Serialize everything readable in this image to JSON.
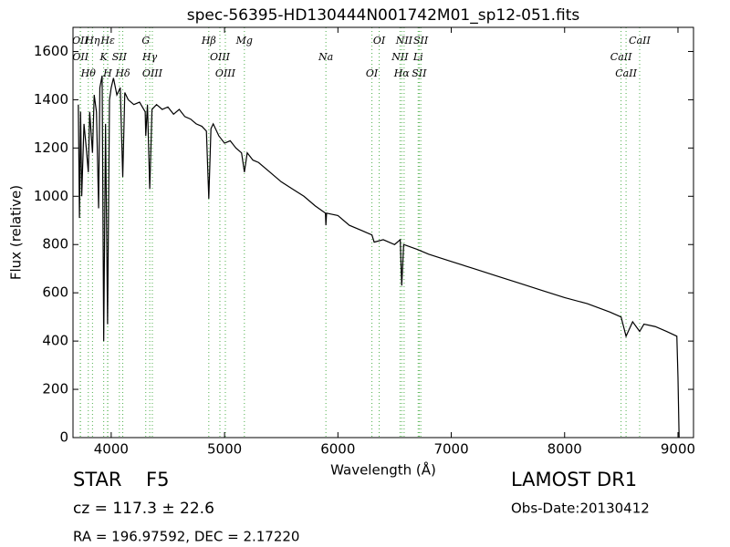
{
  "chart_data": {
    "type": "line",
    "title": "spec-56395-HD130444N001742M01_sp12-051.fits",
    "xlabel": "Wavelength (Å)",
    "ylabel": "Flux (relative)",
    "color": "#000000",
    "x": [
      3710,
      3720,
      3730,
      3740,
      3760,
      3780,
      3798,
      3810,
      3835,
      3850,
      3870,
      3889,
      3900,
      3920,
      3934,
      3950,
      3968,
      3985,
      4000,
      4020,
      4050,
      4080,
      4102,
      4120,
      4150,
      4200,
      4250,
      4300,
      4305,
      4320,
      4340,
      4360,
      4400,
      4450,
      4500,
      4550,
      4600,
      4650,
      4700,
      4750,
      4800,
      4840,
      4861,
      4880,
      4900,
      4950,
      5000,
      5050,
      5100,
      5150,
      5175,
      5200,
      5250,
      5300,
      5400,
      5500,
      5600,
      5700,
      5800,
      5890,
      5894,
      5900,
      6000,
      6100,
      6200,
      6300,
      6320,
      6400,
      6500,
      6550,
      6563,
      6580,
      6700,
      6800,
      7000,
      7200,
      7400,
      7600,
      7800,
      8000,
      8200,
      8400,
      8498,
      8542,
      8600,
      8662,
      8700,
      8800,
      8900,
      8990,
      9000,
      9010
    ],
    "values": [
      1380,
      910,
      1350,
      1000,
      1300,
      1200,
      1100,
      1350,
      1180,
      1420,
      1350,
      950,
      1450,
      1500,
      400,
      1300,
      470,
      1400,
      1450,
      1490,
      1420,
      1450,
      1080,
      1430,
      1400,
      1380,
      1390,
      1350,
      1250,
      1380,
      1030,
      1360,
      1380,
      1360,
      1370,
      1340,
      1360,
      1330,
      1320,
      1300,
      1290,
      1270,
      990,
      1280,
      1300,
      1250,
      1220,
      1230,
      1200,
      1180,
      1100,
      1180,
      1150,
      1140,
      1100,
      1060,
      1030,
      1000,
      960,
      930,
      880,
      930,
      920,
      880,
      860,
      840,
      810,
      820,
      800,
      820,
      630,
      800,
      780,
      760,
      730,
      700,
      670,
      640,
      610,
      580,
      555,
      520,
      500,
      420,
      480,
      440,
      470,
      460,
      440,
      420,
      250,
      0
    ],
    "xlim": [
      3663,
      9137
    ],
    "ylim": [
      0,
      1700
    ],
    "xticks": [
      4000,
      5000,
      6000,
      7000,
      8000,
      9000
    ],
    "yticks": [
      0,
      200,
      400,
      600,
      800,
      1000,
      1200,
      1400,
      1600
    ],
    "spectral_line_color": "#4daf4a",
    "spectral_lines": [
      {
        "label": "OII",
        "x": 3727
      },
      {
        "label": "OII",
        "x": 3729
      },
      {
        "label": "Hθ",
        "x": 3798
      },
      {
        "label": "Hη",
        "x": 3835
      },
      {
        "label": "K",
        "x": 3934
      },
      {
        "label": "H",
        "x": 3968
      },
      {
        "label": "Hε",
        "x": 3970
      },
      {
        "label": "SII",
        "x": 4072
      },
      {
        "label": "Hδ",
        "x": 4102
      },
      {
        "label": "G",
        "x": 4305
      },
      {
        "label": "Hγ",
        "x": 4340
      },
      {
        "label": "OIII",
        "x": 4363
      },
      {
        "label": "Hβ",
        "x": 4861
      },
      {
        "label": "OIII",
        "x": 4959
      },
      {
        "label": "OIII",
        "x": 5007
      },
      {
        "label": "Mg",
        "x": 5175
      },
      {
        "label": "Na",
        "x": 5894
      },
      {
        "label": "OI",
        "x": 6300
      },
      {
        "label": "OI",
        "x": 6364
      },
      {
        "label": "NII",
        "x": 6548
      },
      {
        "label": "Hα",
        "x": 6563
      },
      {
        "label": "NII",
        "x": 6584
      },
      {
        "label": "Li",
        "x": 6708
      },
      {
        "label": "SII",
        "x": 6717
      },
      {
        "label": "SII",
        "x": 6731
      },
      {
        "label": "CaII",
        "x": 8498
      },
      {
        "label": "CaII",
        "x": 8542
      },
      {
        "label": "CaII",
        "x": 8662
      }
    ]
  },
  "info": {
    "class": "STAR",
    "subclass": "F5",
    "cz": "cz = 117.3 ± 22.6",
    "radec": "RA = 196.97592, DEC = 2.17220",
    "survey": "LAMOST DR1",
    "obs_date": "Obs-Date:20130412"
  }
}
